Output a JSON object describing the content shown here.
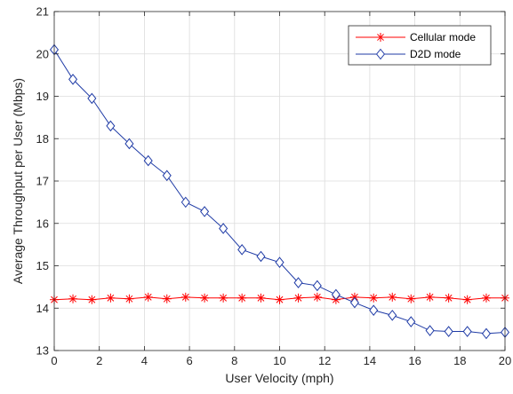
{
  "chart_data": {
    "type": "line",
    "title": "",
    "xlabel": "User Velocity (mph)",
    "ylabel": "Average Throughput per User (Mbps)",
    "xlim": [
      0,
      20
    ],
    "ylim": [
      13,
      21
    ],
    "xticks": [
      "0",
      "2",
      "4",
      "6",
      "8",
      "10",
      "12",
      "14",
      "16",
      "18",
      "20"
    ],
    "yticks": [
      "13",
      "14",
      "15",
      "16",
      "17",
      "18",
      "19",
      "20",
      "21"
    ],
    "grid": true,
    "legend_position": "top-right",
    "x": [
      0,
      0.83,
      1.67,
      2.5,
      3.33,
      4.17,
      5,
      5.83,
      6.67,
      7.5,
      8.33,
      9.17,
      10,
      10.83,
      11.67,
      12.5,
      13.33,
      14.17,
      15,
      15.83,
      16.67,
      17.5,
      18.33,
      19.17,
      20
    ],
    "series": [
      {
        "name": "Cellular mode",
        "color": "#ff0000",
        "marker": "asterisk",
        "values": [
          14.2,
          14.22,
          14.2,
          14.24,
          14.22,
          14.26,
          14.22,
          14.26,
          14.24,
          14.24,
          14.24,
          14.24,
          14.2,
          14.24,
          14.26,
          14.2,
          14.26,
          14.24,
          14.26,
          14.22,
          14.26,
          14.24,
          14.2,
          14.24,
          14.24
        ]
      },
      {
        "name": "D2D mode",
        "color": "#1f3ba6",
        "marker": "diamond",
        "values": [
          20.1,
          19.4,
          18.95,
          18.3,
          17.88,
          17.48,
          17.13,
          16.5,
          16.28,
          15.88,
          15.38,
          15.22,
          15.08,
          14.6,
          14.53,
          14.32,
          14.13,
          13.95,
          13.83,
          13.68,
          13.47,
          13.45,
          13.45,
          13.4,
          13.43
        ]
      }
    ]
  }
}
